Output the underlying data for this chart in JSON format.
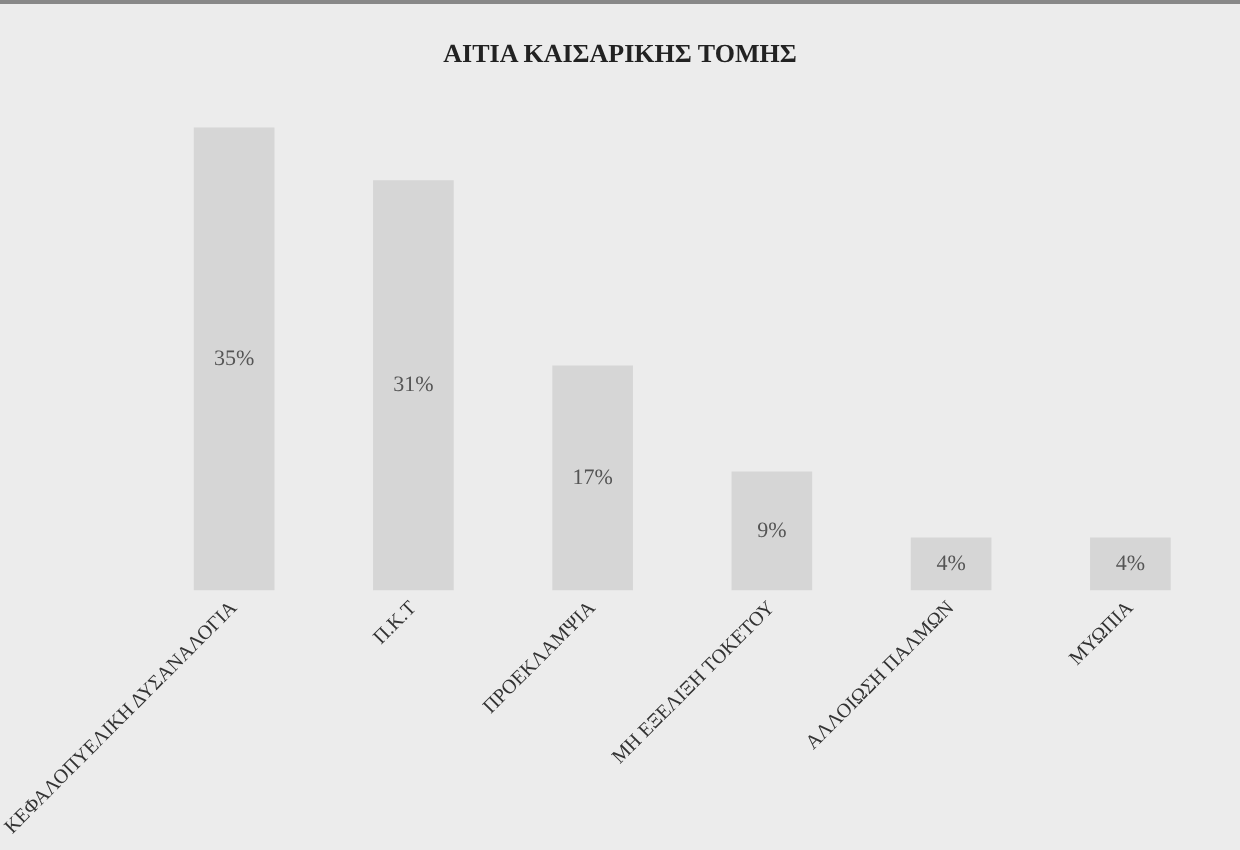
{
  "chart_data": {
    "type": "bar",
    "title": "ΑΙΤΙΑ ΚΑΙΣΑΡΙΚΗΣ ΤΟΜΗΣ",
    "categories": [
      "ΚΕΦΑΛΟΠΥΕΛΙΚΗ ΔΥΣΑΝΑΛΟΓΙΑ",
      "Π.Κ.Τ",
      "ΠΡΟΕΚΛΑΜΨΙΑ",
      "ΜΗ ΕΞΕΛΙΞΗ ΤΟΚΕΤΟΥ",
      "ΑΛΛΟΙΩΣΗ ΠΑΛΜΩΝ",
      "ΜΥΩΠΙΑ"
    ],
    "values": [
      35,
      31,
      17,
      9,
      4,
      4
    ],
    "value_labels": [
      "35%",
      "31%",
      "17%",
      "9%",
      "4%",
      "4%"
    ],
    "color": "#d6d6d6",
    "grid": false,
    "legend": false
  }
}
